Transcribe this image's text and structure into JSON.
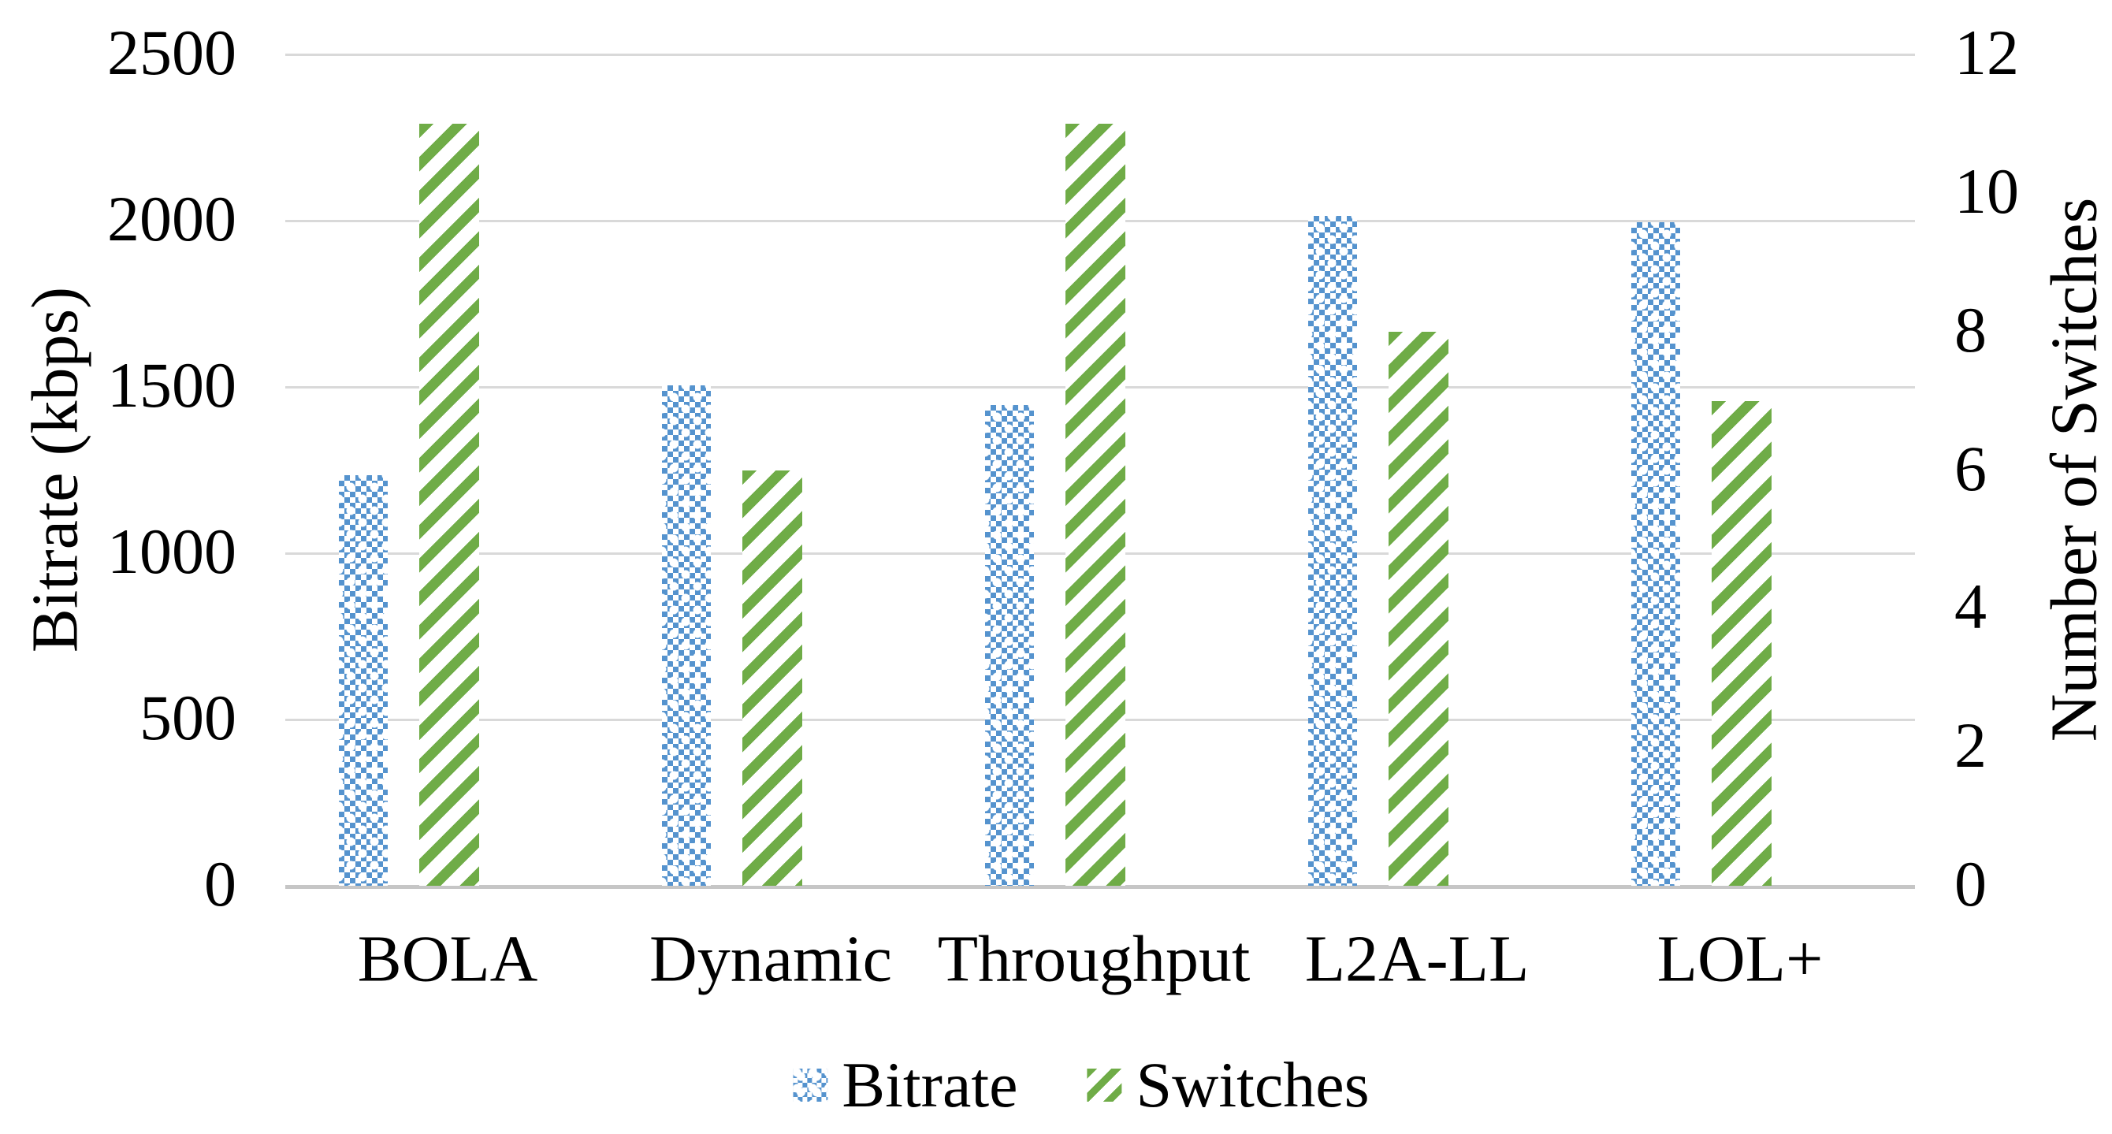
{
  "chart_data": {
    "type": "bar",
    "title": "",
    "categories": [
      "BOLA",
      "Dynamic",
      "Throughput",
      "L2A-LL",
      "LOL+"
    ],
    "series": [
      {
        "name": "Bitrate",
        "axis": "left",
        "values": [
          1234,
          1505,
          1445,
          2015,
          1995
        ],
        "pattern": "checker",
        "color": "#5593CE"
      },
      {
        "name": "Switches",
        "axis": "right",
        "values": [
          11,
          6,
          11,
          8,
          7
        ],
        "pattern": "diagonal-stripes",
        "color": "#6FAC47"
      }
    ],
    "left_axis": {
      "label": "Bitrate (kbps)",
      "min": 0,
      "max": 2500,
      "step": 500,
      "ticks": [
        0,
        500,
        1000,
        1500,
        2000,
        2500
      ]
    },
    "right_axis": {
      "label": "Number of Switches",
      "min": 0,
      "max": 12,
      "step": 2,
      "ticks": [
        0,
        2,
        4,
        6,
        8,
        10,
        12
      ]
    },
    "legend": [
      "Bitrate",
      "Switches"
    ],
    "legend_position": "bottom-center",
    "grid": true,
    "gridline_color": "#D9D9D9",
    "axis_line_color": "#C6C6C6",
    "background": "#FFFFFF",
    "text_color": "#000000"
  }
}
